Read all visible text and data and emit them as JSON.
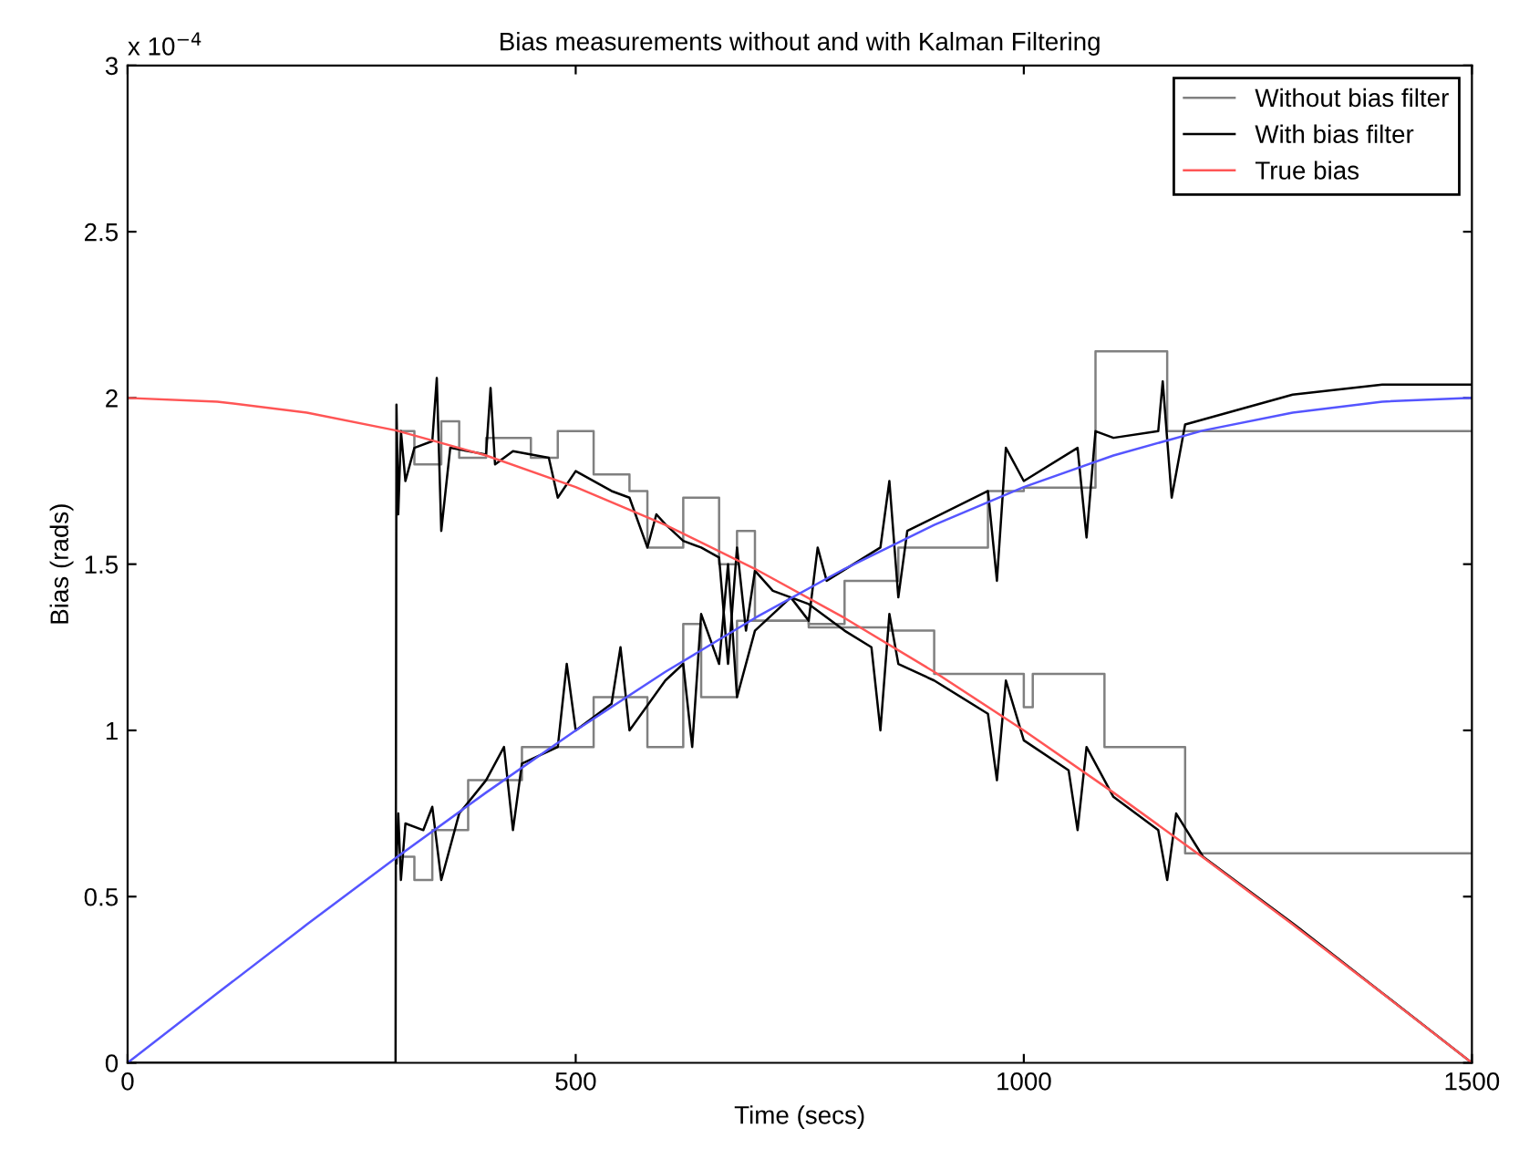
{
  "chart_data": {
    "type": "line",
    "title": "Bias measurements without and with Kalman Filtering",
    "xlabel": "Time (secs)",
    "ylabel": "Bias (rads)",
    "annotations": [
      "x 10$^{−4}$"
    ],
    "xlim": [
      0,
      1500
    ],
    "xticks": [
      0,
      500,
      1000,
      1500
    ],
    "ylim": [
      0,
      3
    ],
    "yticks": [
      0,
      0.5,
      1,
      1.5,
      2,
      2.5,
      3
    ],
    "grid": false,
    "legend": "top right",
    "line_style": "solid",
    "marker": "none",
    "series": [
      {
        "name": "Without bias filter",
        "type": "step",
        "color": "#808080",
        "x": [
          300,
          320,
          350,
          370,
          400,
          450,
          480,
          520,
          560,
          580,
          620,
          660,
          680,
          700,
          760,
          820,
          850,
          900,
          1000,
          1010,
          1090,
          1120,
          1180,
          1500
        ],
        "values": [
          1.9,
          1.8,
          1.93,
          1.82,
          1.88,
          1.82,
          1.9,
          1.77,
          1.72,
          1.55,
          1.7,
          1.5,
          1.6,
          1.33,
          1.31,
          1.31,
          1.3,
          1.17,
          1.07,
          1.17,
          0.95,
          0.95,
          0.63,
          0.63
        ]
      },
      {
        "type": "step",
        "color": "#808080",
        "x": [
          300,
          320,
          340,
          380,
          420,
          440,
          490,
          520,
          580,
          620,
          640,
          680,
          760,
          800,
          840,
          860,
          900,
          960,
          1000,
          1080,
          1120,
          1160,
          1500
        ],
        "values": [
          0.62,
          0.55,
          0.7,
          0.85,
          0.85,
          0.95,
          0.95,
          1.1,
          0.95,
          1.32,
          1.1,
          1.33,
          1.32,
          1.45,
          1.45,
          1.55,
          1.55,
          1.72,
          1.73,
          2.14,
          2.14,
          1.9,
          1.9
        ]
      },
      {
        "name": "With bias filter",
        "color": "#000000",
        "x": [
          0,
          299,
          300,
          302,
          305,
          310,
          320,
          340,
          345,
          350,
          360,
          400,
          405,
          410,
          430,
          470,
          480,
          500,
          540,
          560,
          580,
          590,
          600,
          620,
          640,
          660,
          670,
          680,
          690,
          700,
          720,
          760,
          800,
          830,
          840,
          850,
          860,
          900,
          960,
          970,
          980,
          1000,
          1050,
          1060,
          1070,
          1100,
          1150,
          1160,
          1170,
          1200,
          1300,
          1400,
          1500
        ],
        "values": [
          0,
          0,
          1.98,
          1.65,
          1.9,
          1.75,
          1.85,
          1.87,
          2.06,
          1.6,
          1.85,
          1.83,
          2.03,
          1.8,
          1.84,
          1.82,
          1.7,
          1.78,
          1.72,
          1.7,
          1.55,
          1.65,
          1.62,
          1.57,
          1.55,
          1.52,
          1.2,
          1.55,
          1.3,
          1.48,
          1.42,
          1.38,
          1.3,
          1.25,
          1.0,
          1.35,
          1.2,
          1.15,
          1.05,
          0.85,
          1.15,
          0.97,
          0.88,
          0.7,
          0.95,
          0.8,
          0.7,
          0.55,
          0.75,
          0.62,
          0.42,
          0.21,
          0.0
        ]
      },
      {
        "color": "#000000",
        "x": [
          300,
          302,
          305,
          310,
          330,
          340,
          350,
          370,
          400,
          420,
          430,
          440,
          480,
          490,
          500,
          540,
          550,
          560,
          600,
          620,
          630,
          640,
          660,
          670,
          680,
          700,
          740,
          760,
          770,
          780,
          840,
          850,
          860,
          870,
          960,
          970,
          980,
          1000,
          1060,
          1070,
          1080,
          1100,
          1150,
          1155,
          1165,
          1180,
          1300,
          1400,
          1500
        ],
        "values": [
          0.6,
          0.75,
          0.55,
          0.72,
          0.7,
          0.77,
          0.55,
          0.75,
          0.85,
          0.95,
          0.7,
          0.9,
          0.95,
          1.2,
          1.0,
          1.08,
          1.25,
          1.0,
          1.15,
          1.2,
          0.95,
          1.35,
          1.2,
          1.5,
          1.1,
          1.3,
          1.4,
          1.33,
          1.55,
          1.45,
          1.55,
          1.75,
          1.4,
          1.6,
          1.72,
          1.45,
          1.85,
          1.75,
          1.85,
          1.58,
          1.9,
          1.88,
          1.9,
          2.05,
          1.7,
          1.92,
          2.01,
          2.04,
          2.04
        ]
      },
      {
        "name": "True bias",
        "color": "#ff5555",
        "x": [
          0,
          100,
          200,
          300,
          400,
          500,
          600,
          700,
          800,
          900,
          1000,
          1100,
          1200,
          1300,
          1400,
          1500
        ],
        "values": [
          2,
          1.989,
          1.956,
          1.902,
          1.827,
          1.732,
          1.618,
          1.486,
          1.338,
          1.176,
          1.0,
          0.813,
          0.618,
          0.416,
          0.209,
          0
        ]
      },
      {
        "color": "#5555ff",
        "x": [
          0,
          100,
          200,
          300,
          400,
          500,
          600,
          700,
          800,
          900,
          1000,
          1100,
          1200,
          1300,
          1400,
          1500
        ],
        "values": [
          0,
          0.209,
          0.416,
          0.618,
          0.813,
          1.0,
          1.176,
          1.338,
          1.486,
          1.618,
          1.732,
          1.827,
          1.902,
          1.956,
          1.989,
          2.0
        ]
      }
    ]
  }
}
